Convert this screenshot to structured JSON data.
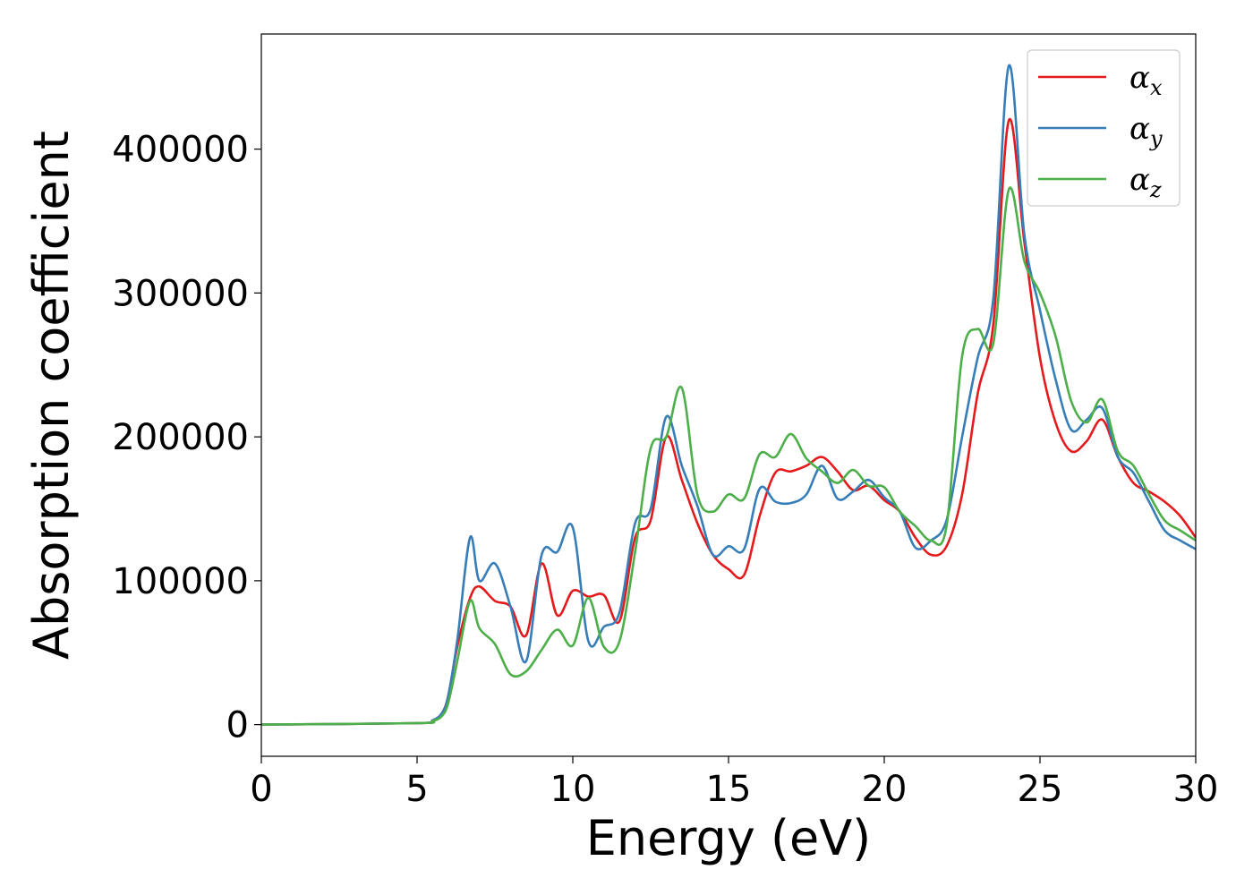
{
  "chart_data": {
    "type": "line",
    "xlabel": "Energy (eV)",
    "ylabel": "Absorption coefficient",
    "xlim": [
      0,
      30
    ],
    "ylim": [
      -22000,
      480000
    ],
    "xticks": [
      0,
      5,
      10,
      15,
      20,
      25,
      30
    ],
    "xtick_labels": [
      "0",
      "5",
      "10",
      "15",
      "20",
      "25",
      "30"
    ],
    "yticks": [
      0,
      100000,
      200000,
      300000,
      400000
    ],
    "ytick_labels": [
      "0",
      "100000",
      "200000",
      "300000",
      "400000"
    ],
    "grid": false,
    "legend_position": "top-right",
    "x": [
      0,
      5,
      5.5,
      5.8,
      6,
      6.3,
      6.7,
      7,
      7.5,
      8,
      8.5,
      9,
      9.5,
      10,
      10.5,
      11,
      11.5,
      12,
      12.5,
      13,
      13.5,
      14,
      14.5,
      15,
      15.5,
      16,
      16.5,
      17,
      17.5,
      18,
      18.5,
      19,
      19.5,
      20,
      20.5,
      21,
      21.5,
      22,
      22.5,
      23,
      23.5,
      24,
      24.5,
      25,
      25.5,
      26,
      26.5,
      27,
      27.5,
      28,
      28.5,
      29,
      29.5,
      30
    ],
    "series": [
      {
        "name": "α_x",
        "label_base": "α",
        "label_sub": "x",
        "color": "#e41a1c",
        "values": [
          0,
          1000,
          3000,
          8000,
          20000,
          55000,
          88000,
          96000,
          86000,
          82000,
          62000,
          112000,
          76000,
          93000,
          89000,
          90000,
          72000,
          130000,
          142000,
          200000,
          170000,
          140000,
          118000,
          108000,
          104000,
          145000,
          175000,
          176000,
          180000,
          186000,
          176000,
          163000,
          166000,
          156000,
          148000,
          130000,
          118000,
          124000,
          160000,
          230000,
          278000,
          420000,
          335000,
          255000,
          210000,
          190000,
          197000,
          212000,
          186000,
          168000,
          162000,
          155000,
          145000,
          130000
        ]
      },
      {
        "name": "α_y",
        "label_base": "α",
        "label_sub": "y",
        "color": "#377eb8",
        "values": [
          0,
          1000,
          3000,
          8000,
          20000,
          60000,
          130000,
          100000,
          112000,
          82000,
          44000,
          118000,
          120000,
          137000,
          58000,
          68000,
          78000,
          140000,
          150000,
          214000,
          180000,
          152000,
          118000,
          124000,
          122000,
          164000,
          155000,
          154000,
          160000,
          180000,
          157000,
          162000,
          170000,
          158000,
          148000,
          123000,
          128000,
          142000,
          200000,
          255000,
          296000,
          458000,
          340000,
          288000,
          240000,
          205000,
          212000,
          220000,
          186000,
          175000,
          155000,
          135000,
          128000,
          122000
        ]
      },
      {
        "name": "α_z",
        "label_base": "α",
        "label_sub": "z",
        "color": "#4daf4a",
        "values": [
          0,
          1000,
          2500,
          6000,
          15000,
          45000,
          86000,
          67000,
          56000,
          35000,
          37000,
          52000,
          66000,
          55000,
          88000,
          54000,
          58000,
          120000,
          192000,
          200000,
          234000,
          160000,
          148000,
          160000,
          157000,
          188000,
          186000,
          202000,
          185000,
          176000,
          168000,
          177000,
          166000,
          165000,
          148000,
          138000,
          128000,
          138000,
          256000,
          275000,
          265000,
          372000,
          322000,
          300000,
          270000,
          225000,
          210000,
          226000,
          190000,
          180000,
          160000,
          142000,
          135000,
          128000
        ]
      }
    ]
  }
}
